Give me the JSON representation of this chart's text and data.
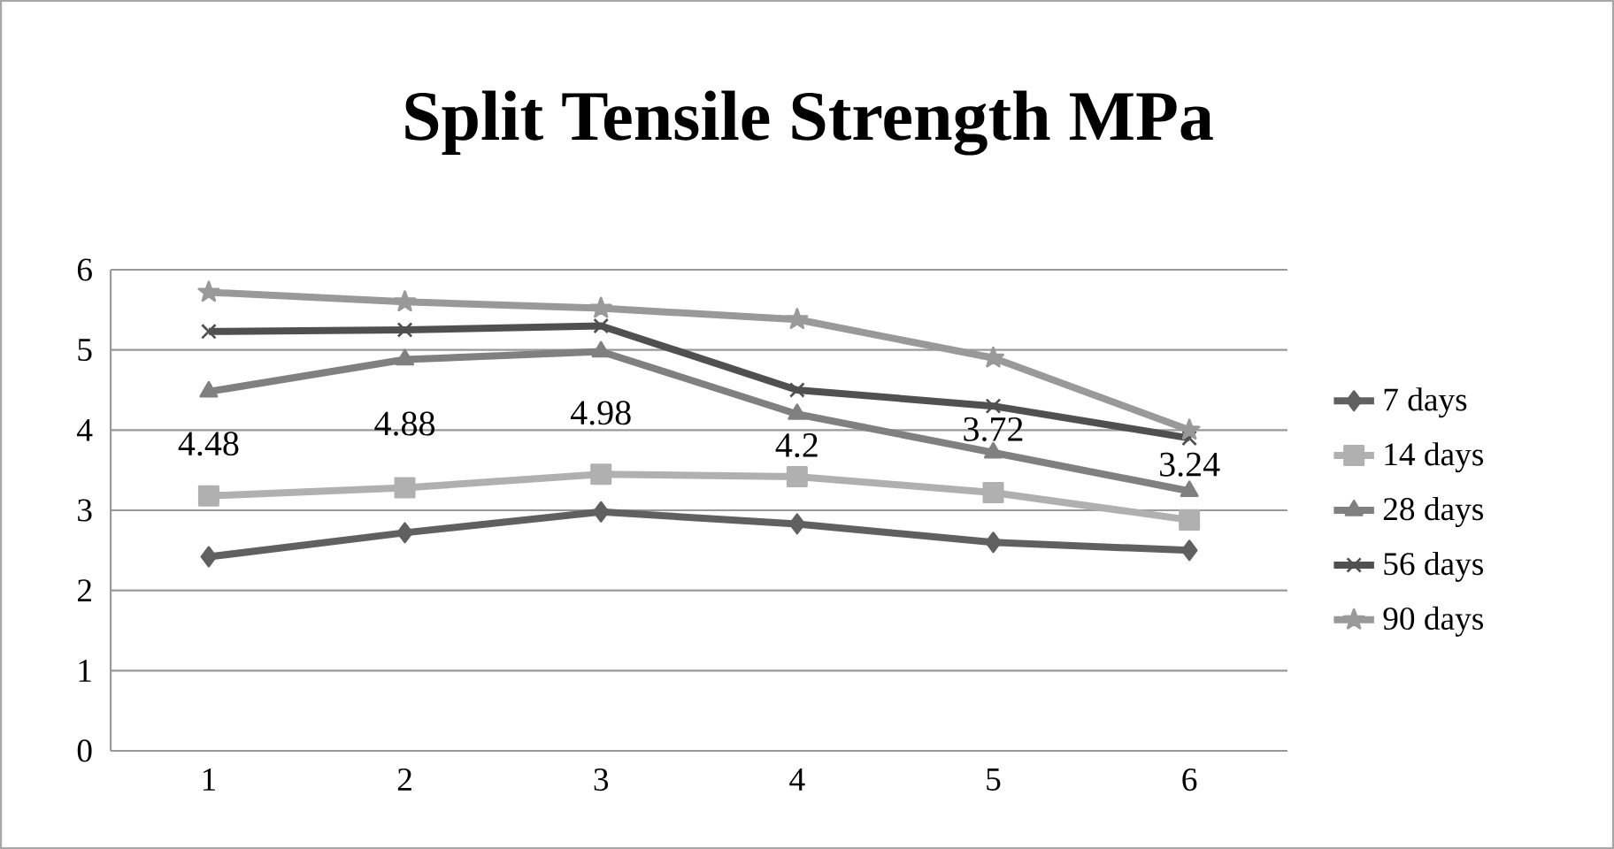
{
  "chart_data": {
    "type": "line",
    "title": "Split Tensile Strength MPa",
    "categories": [
      "1",
      "2",
      "3",
      "4",
      "5",
      "6"
    ],
    "series": [
      {
        "name": "7  days",
        "color": "#606060",
        "marker": "diamond",
        "values": [
          2.42,
          2.72,
          2.98,
          2.83,
          2.6,
          2.5
        ]
      },
      {
        "name": "14 days",
        "color": "#b0b0b0",
        "marker": "square",
        "values": [
          3.18,
          3.28,
          3.45,
          3.42,
          3.22,
          2.88
        ]
      },
      {
        "name": "28 days",
        "color": "#808080",
        "marker": "triangle",
        "values": [
          4.48,
          4.88,
          4.98,
          4.2,
          3.72,
          3.24
        ],
        "value_labels": [
          "4.48",
          "4.88",
          "4.98",
          "4.2",
          "3.72",
          "3.24"
        ]
      },
      {
        "name": "56 days",
        "color": "#505050",
        "marker": "cross",
        "values": [
          5.23,
          5.25,
          5.3,
          4.5,
          4.3,
          3.9
        ]
      },
      {
        "name": "90 days",
        "color": "#999999",
        "marker": "star",
        "values": [
          5.72,
          5.6,
          5.52,
          5.38,
          4.9,
          4.0
        ]
      }
    ],
    "ylim": [
      0,
      6
    ],
    "yticks": [
      0,
      1,
      2,
      3,
      4,
      5,
      6
    ],
    "grid": "y",
    "legend": "right",
    "line_style": "solid"
  }
}
